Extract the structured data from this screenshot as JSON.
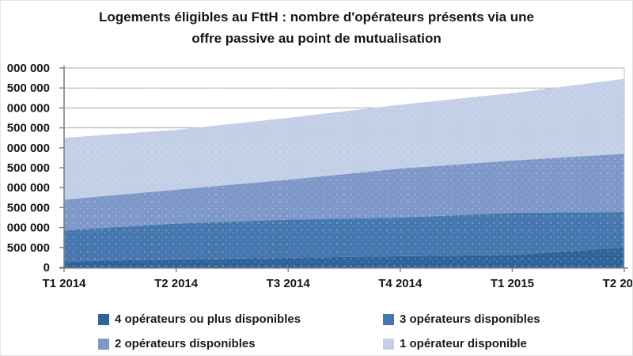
{
  "title": {
    "line1": "Logements éligibles au FttH : nombre d'opérateurs présents via une",
    "line2": "offre passive au point de mutualisation"
  },
  "axes": {
    "y_tick_labels_displayed": [
      "000 000",
      "500 000",
      "000 000",
      "500 000",
      "000 000",
      "500 000",
      "000 000",
      "500 000",
      "000 000",
      "500 000",
      "0"
    ],
    "x_tick_labels_displayed": [
      "T1 2014",
      "T2 2014",
      "T3 2014",
      "T4 2014",
      "T1 2015",
      "T2 20"
    ]
  },
  "chart_data": {
    "type": "area",
    "stacked": true,
    "title": "Logements éligibles au FttH : nombre d'opérateurs présents via une offre passive au point de mutualisation",
    "categories": [
      "T1 2014",
      "T2 2014",
      "T3 2014",
      "T4 2014",
      "T1 2015",
      "T2 20"
    ],
    "ylim": [
      0,
      5000000
    ],
    "y_tick_step": 500000,
    "grid": "horizontal",
    "legend_position": "bottom",
    "series": [
      {
        "name": "4 opérateurs ou plus disponibles",
        "color": "#31639B",
        "values": [
          150000,
          200000,
          240000,
          280000,
          310000,
          500000
        ]
      },
      {
        "name": "3 opérateurs disponibles",
        "color": "#4678AF",
        "values": [
          780000,
          900000,
          960000,
          970000,
          1060000,
          890000
        ]
      },
      {
        "name": "2 opérateurs disponibles",
        "color": "#7E99C9",
        "values": [
          770000,
          850000,
          1000000,
          1230000,
          1310000,
          1460000
        ]
      },
      {
        "name": "1 opérateur disponible",
        "color": "#C3CFE6",
        "values": [
          1550000,
          1500000,
          1550000,
          1600000,
          1690000,
          1880000
        ]
      }
    ]
  },
  "legend": {
    "items": [
      {
        "label": "4 opérateurs ou plus disponibles",
        "color": "#31639B"
      },
      {
        "label": "3 opérateurs disponibles",
        "color": "#4678AF"
      },
      {
        "label": "2 opérateurs disponibles",
        "color": "#7E99C9"
      },
      {
        "label": "1 opérateur disponible",
        "color": "#C3CFE6"
      }
    ]
  },
  "colors": {
    "grid": "#A8A8A8",
    "axis": "#808080",
    "plot_right_border": "#C9C9C9",
    "text": "#161616"
  }
}
